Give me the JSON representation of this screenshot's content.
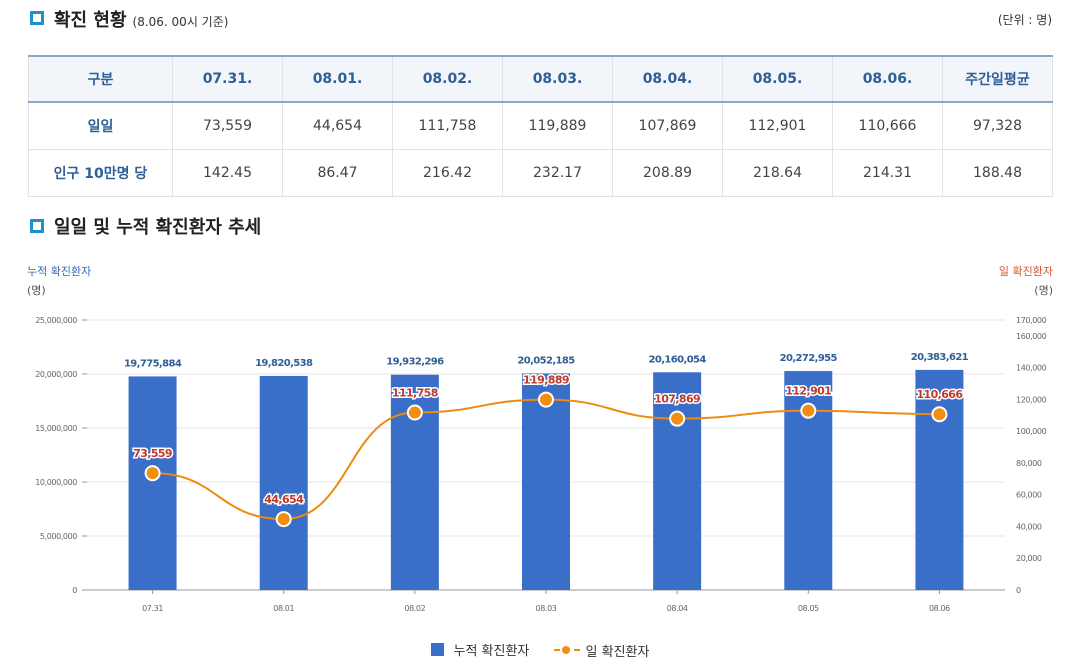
{
  "section1": {
    "title": "확진 현황",
    "subtitle": "(8.06. 00시 기준)",
    "unit": "(단위 : 명)"
  },
  "table": {
    "headers": [
      "구분",
      "07.31.",
      "08.01.",
      "08.02.",
      "08.03.",
      "08.04.",
      "08.05.",
      "08.06.",
      "주간일평균"
    ],
    "rows": [
      {
        "label": "일일",
        "cells": [
          "73,559",
          "44,654",
          "111,758",
          "119,889",
          "107,869",
          "112,901",
          "110,666",
          "97,328"
        ]
      },
      {
        "label": "인구 10만명 당",
        "cells": [
          "142.45",
          "86.47",
          "216.42",
          "232.17",
          "208.89",
          "218.64",
          "214.31",
          "188.48"
        ]
      }
    ]
  },
  "section2": {
    "title": "일일 및 누적 확진환자 추세"
  },
  "colors": {
    "bar": "#3a6fc9",
    "line": "#ef8a10",
    "left_axis_label": "#3a6ab0",
    "right_axis_label": "#d9532c"
  },
  "chart_data": {
    "type": "bar",
    "categories": [
      "07.31",
      "08.01",
      "08.02",
      "08.03",
      "08.04",
      "08.05",
      "08.06"
    ],
    "left_axis": {
      "title": "누적 확진환자",
      "unit": "(명)",
      "ylim": [
        0,
        25000000
      ],
      "ticks": [
        "25,000,000",
        "20,000,000",
        "15,000,000",
        "10,000,000",
        "5,000,000",
        "0"
      ]
    },
    "right_axis": {
      "title": "일 확진환자",
      "unit": "(명)",
      "ylim": [
        0,
        170000
      ],
      "ticks": [
        "170,000",
        "160,000",
        "140,000",
        "120,000",
        "100,000",
        "80,000",
        "60,000",
        "40,000",
        "20,000",
        "0"
      ]
    },
    "series": [
      {
        "name": "누적 확진환자",
        "type": "bar",
        "axis": "left",
        "values": [
          19775884,
          19820538,
          19932296,
          20052185,
          20160054,
          20272955,
          20383621
        ],
        "labels": [
          "19,775,884",
          "19,820,538",
          "19,932,296",
          "20,052,185",
          "20,160,054",
          "20,272,955",
          "20,383,621"
        ]
      },
      {
        "name": "일 확진환자",
        "type": "line",
        "axis": "right",
        "values": [
          73559,
          44654,
          111758,
          119889,
          107869,
          112901,
          110666
        ],
        "labels": [
          "73,559",
          "44,654",
          "111,758",
          "119,889",
          "107,869",
          "112,901",
          "110,666"
        ]
      }
    ],
    "grid": true,
    "legend": "bottom-center"
  }
}
